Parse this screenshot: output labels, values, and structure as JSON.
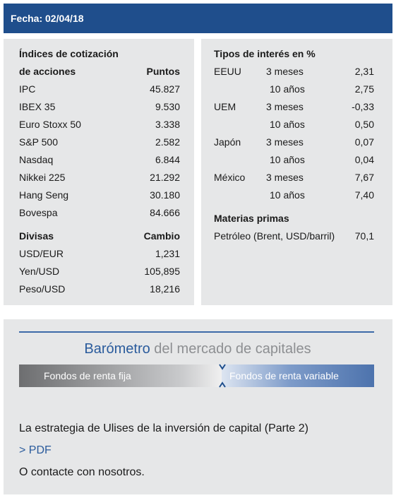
{
  "header": {
    "date": "Fecha: 02/04/18"
  },
  "indices": {
    "title": "Índices de cotización",
    "subtitle": "de acciones",
    "column": "Puntos",
    "rows": [
      [
        "IPC",
        "45.827"
      ],
      [
        "IBEX 35",
        "9.530"
      ],
      [
        "Euro Stoxx 50",
        "3.338"
      ],
      [
        "S&P 500",
        "2.582"
      ],
      [
        "Nasdaq",
        "6.844"
      ],
      [
        "Nikkei 225",
        "21.292"
      ],
      [
        "Hang Seng",
        "30.180"
      ],
      [
        "Bovespa",
        "84.666"
      ]
    ]
  },
  "currencies": {
    "title": "Divisas",
    "column": "Cambio",
    "rows": [
      [
        "USD/EUR",
        "1,231"
      ],
      [
        "Yen/USD",
        "105,895"
      ],
      [
        "Peso/USD",
        "18,216"
      ]
    ]
  },
  "rates": {
    "title": "Tipos de interés en %",
    "groups": [
      {
        "country": "EEUU",
        "terms": [
          [
            "3 meses",
            "2,31"
          ],
          [
            "10 años",
            "2,75"
          ]
        ]
      },
      {
        "country": "UEM",
        "terms": [
          [
            "3 meses",
            "-0,33"
          ],
          [
            "10 años",
            "0,50"
          ]
        ]
      },
      {
        "country": "Japón",
        "terms": [
          [
            "3 meses",
            "0,07"
          ],
          [
            "10 años",
            "0,04"
          ]
        ]
      },
      {
        "country": "México",
        "terms": [
          [
            "3 meses",
            "7,67"
          ],
          [
            "10 años",
            "7,40"
          ]
        ]
      }
    ]
  },
  "commodities": {
    "title": "Materias primas",
    "rows": [
      [
        "Petróleo (Brent, USD/barril)",
        "70,1"
      ]
    ]
  },
  "barometer": {
    "title": "Barómetro",
    "title_rest": "del mercado de capitales",
    "left": "Fondos de renta fija",
    "right": "Fondos de renta variable"
  },
  "links": {
    "article": "La estrategia de Ulises de la inversión de capital (Parte 2)",
    "pdf": "> PDF",
    "contact": "O contacte con nosotros."
  }
}
